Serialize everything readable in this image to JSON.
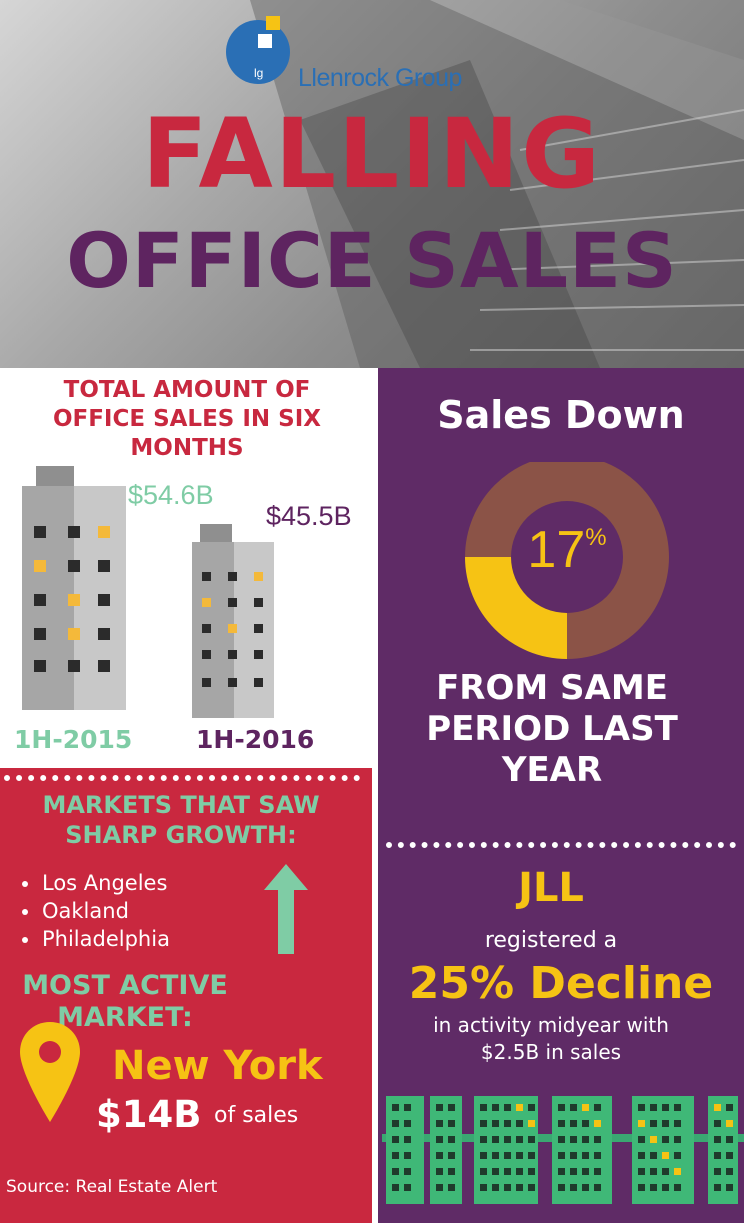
{
  "header": {
    "logo_letters": "lg",
    "logo_text": "Llenrock Group",
    "title_line1": "FALLING",
    "title_line2": "OFFICE SALES"
  },
  "sales_total": {
    "heading": "TOTAL AMOUNT OF OFFICE SALES IN SIX MONTHS",
    "bars": [
      {
        "period": "1H-2015",
        "value_label": "$54.6B",
        "value": 54.6
      },
      {
        "period": "1H-2016",
        "value_label": "$45.5B",
        "value": 45.5
      }
    ]
  },
  "sales_down": {
    "heading": "Sales Down",
    "percent": "17",
    "percent_sign": "%",
    "percent_value": 17,
    "subtext": "FROM SAME PERIOD LAST YEAR"
  },
  "jll": {
    "name": "JLL",
    "registered": "registered a",
    "decline": "25% Decline",
    "detail_line1": "in activity midyear with",
    "detail_line2": "$2.5B in sales"
  },
  "growth": {
    "heading": "MARKETS THAT SAW SHARP GROWTH:",
    "markets": [
      "Los Angeles",
      "Oakland",
      "Philadelphia"
    ],
    "most_active_heading": "MOST ACTIVE MARKET:",
    "most_active_city": "New York",
    "amount": "$14B",
    "amount_suffix": "of sales"
  },
  "source": "Source: Real Estate Alert",
  "colors": {
    "red": "#c9283f",
    "purple": "#5f2b66",
    "mint": "#7fcca5",
    "yellow": "#f6c314",
    "brown": "#8b5347"
  }
}
